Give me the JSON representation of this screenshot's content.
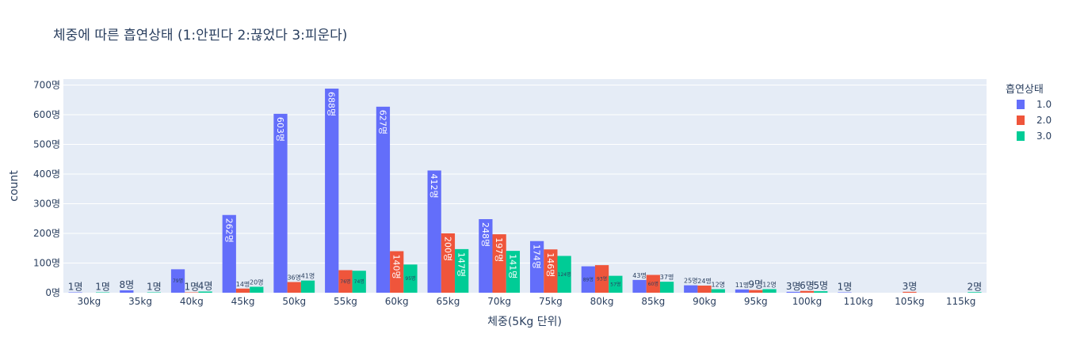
{
  "chart_data": {
    "type": "bar",
    "title": "체중에 따른 흡연상태 (1:안핀다 2:끊었다 3:피운다)",
    "xlabel": "체중(5Kg 단위)",
    "ylabel": "count",
    "ylim": [
      0,
      720
    ],
    "ytick_values": [
      0,
      100,
      200,
      300,
      400,
      500,
      600,
      700
    ],
    "ytick_suffix": "명",
    "value_suffix": "명",
    "categories": [
      "30kg",
      "35kg",
      "40kg",
      "45kg",
      "50kg",
      "55kg",
      "60kg",
      "65kg",
      "70kg",
      "75kg",
      "80kg",
      "85kg",
      "90kg",
      "95kg",
      "100kg",
      "110kg",
      "105kg",
      "115kg"
    ],
    "legend_title": "흡연상태",
    "legend_position": "top-right",
    "grid": true,
    "series": [
      {
        "name": "1.0",
        "color": "#636efa",
        "values": [
          1,
          8,
          79,
          262,
          603,
          688,
          627,
          412,
          248,
          174,
          89,
          43,
          25,
          11,
          3,
          1,
          null,
          null
        ]
      },
      {
        "name": "2.0",
        "color": "#ef553b",
        "values": [
          null,
          null,
          1,
          14,
          36,
          76,
          140,
          200,
          197,
          146,
          93,
          60,
          24,
          9,
          6,
          null,
          3,
          null
        ]
      },
      {
        "name": "3.0",
        "color": "#00cc96",
        "values": [
          1,
          1,
          4,
          20,
          41,
          74,
          95,
          147,
          141,
          124,
          57,
          37,
          12,
          12,
          5,
          null,
          null,
          2
        ]
      }
    ]
  }
}
